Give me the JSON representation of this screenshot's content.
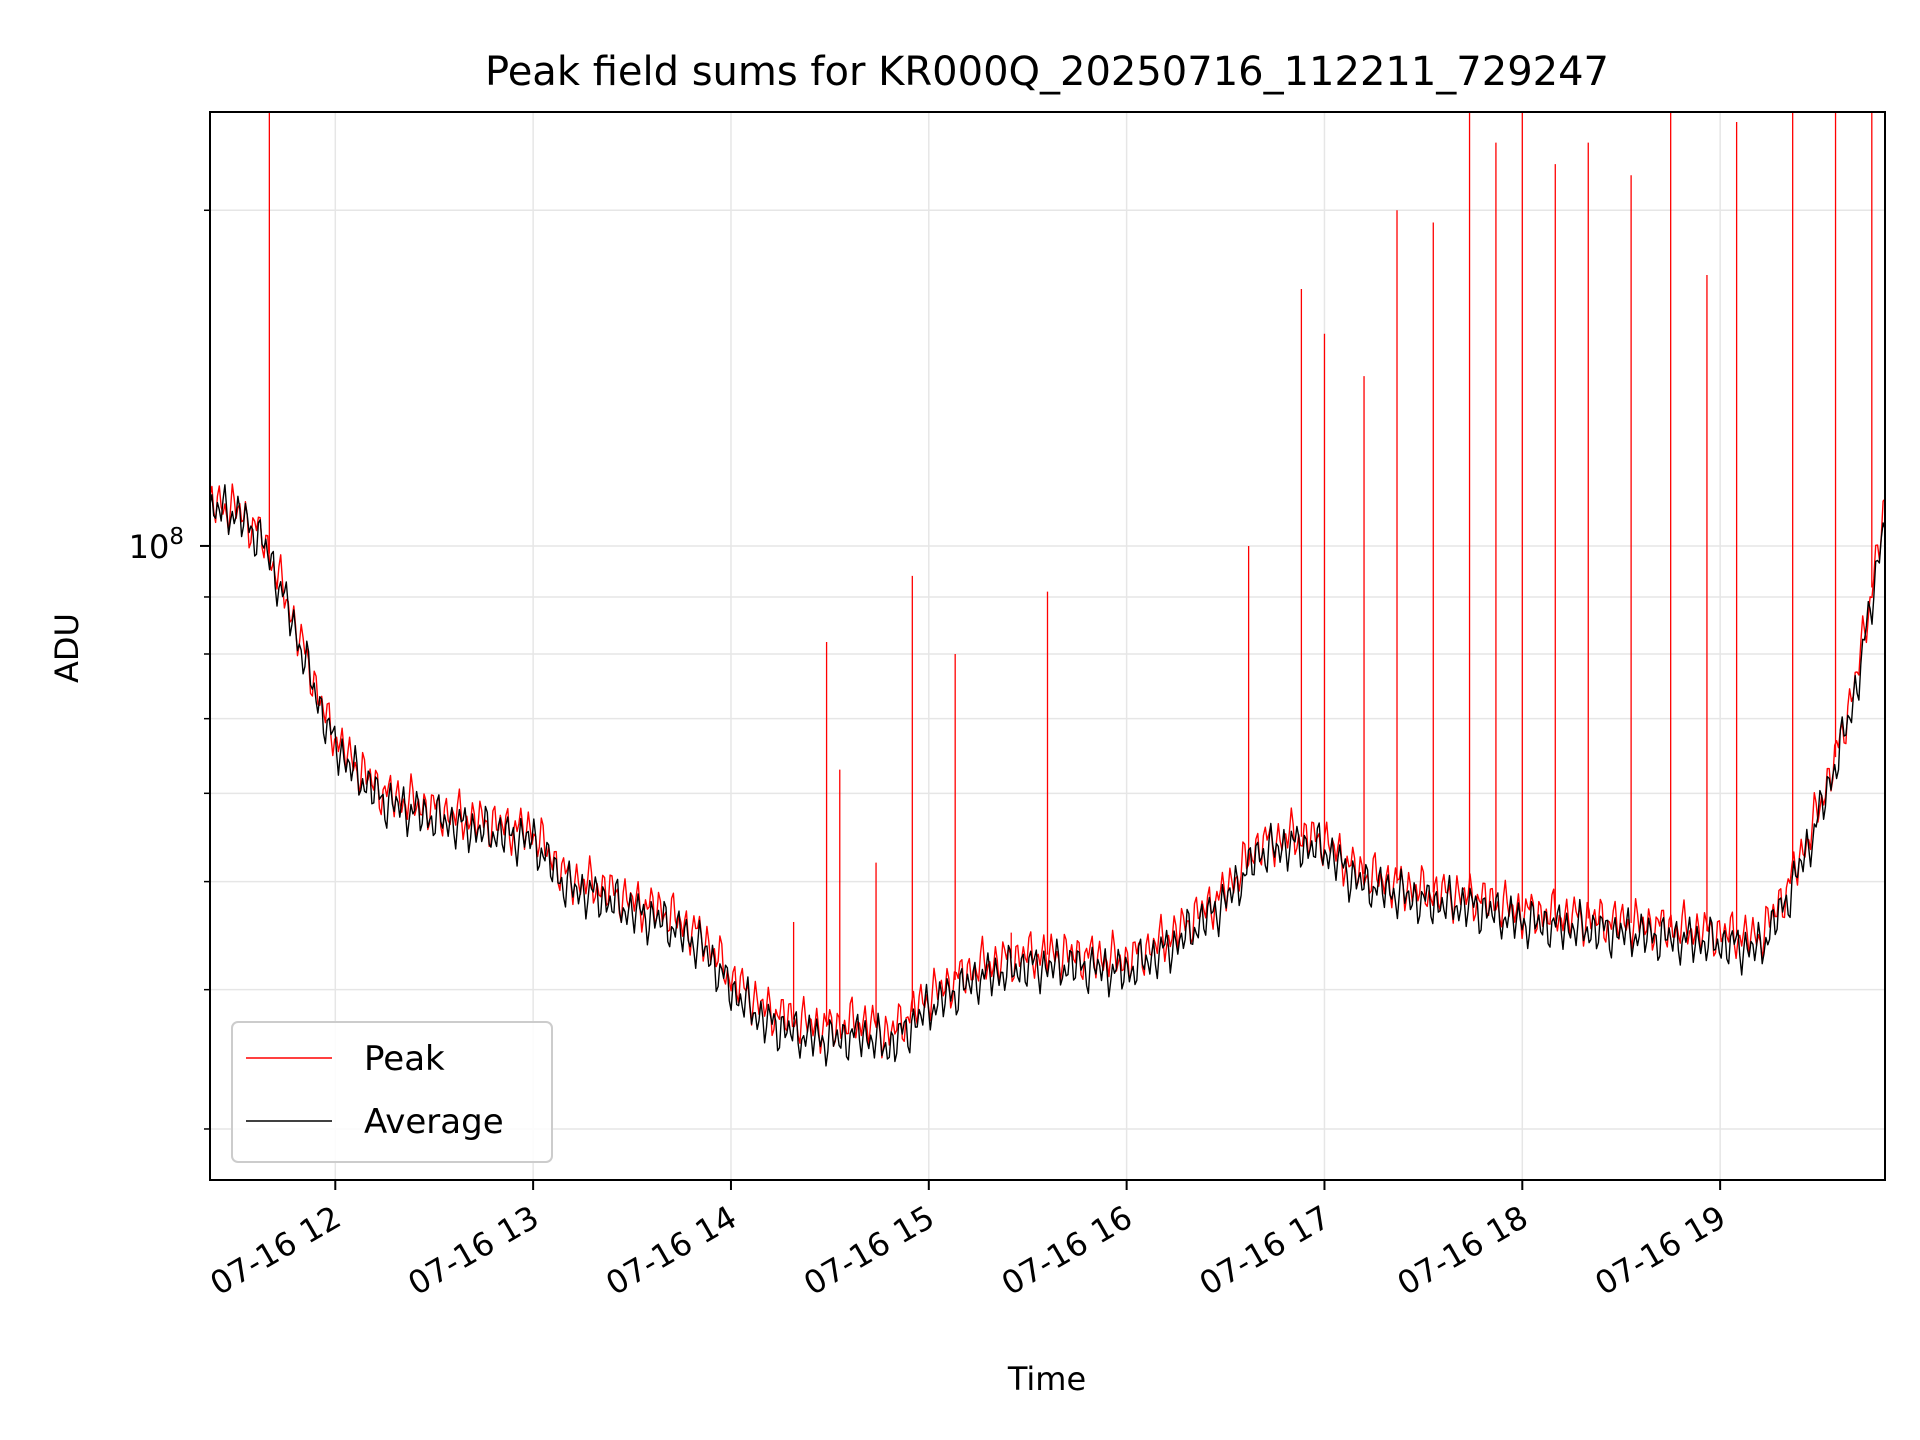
{
  "chart_data": {
    "type": "line",
    "title": "Peak field sums for KR000Q_20250716_112211_729247",
    "xlabel": "Time",
    "ylabel": "ADU",
    "x_unit": "hour",
    "x_range": [
      "07-16 11:22",
      "07-16 19:50"
    ],
    "x_ticks": [
      {
        "x": "07-16 12:00",
        "label": "07-16 12"
      },
      {
        "x": "07-16 13:00",
        "label": "07-16 13"
      },
      {
        "x": "07-16 14:00",
        "label": "07-16 14"
      },
      {
        "x": "07-16 15:00",
        "label": "07-16 15"
      },
      {
        "x": "07-16 16:00",
        "label": "07-16 16"
      },
      {
        "x": "07-16 17:00",
        "label": "07-16 17"
      },
      {
        "x": "07-16 18:00",
        "label": "07-16 18"
      },
      {
        "x": "07-16 19:00",
        "label": "07-16 19"
      }
    ],
    "y_scale": "log",
    "ylim": [
      27000000,
      245000000
    ],
    "y_major_ticks": [
      {
        "value": 100000000,
        "base": "10",
        "exp": "8"
      }
    ],
    "y_minor_ticks": [
      30000000,
      40000000,
      50000000,
      60000000,
      70000000,
      80000000,
      90000000,
      200000000
    ],
    "grid": true,
    "legend": {
      "position": "lower-left"
    },
    "series": [
      {
        "name": "Peak",
        "color": "#ff0000",
        "points": [
          [
            "07-16 11:22",
            109000000.0
          ],
          [
            "07-16 11:30",
            108000000.0
          ],
          [
            "07-16 11:38",
            102000000.0
          ],
          [
            "07-16 11:45",
            90000000.0
          ],
          [
            "07-16 11:52",
            78000000.0
          ],
          [
            "07-16 11:58",
            69000000.0
          ],
          [
            "07-16 12:05",
            64000000.0
          ],
          [
            "07-16 12:15",
            60000000.0
          ],
          [
            "07-16 12:30",
            58000000.0
          ],
          [
            "07-16 12:45",
            56500000.0
          ],
          [
            "07-16 13:00",
            55500000.0
          ],
          [
            "07-16 13:10",
            50500000.0
          ],
          [
            "07-16 13:20",
            49500000.0
          ],
          [
            "07-16 13:30",
            48000000.0
          ],
          [
            "07-16 13:40",
            47000000.0
          ],
          [
            "07-16 13:52",
            44500000.0
          ],
          [
            "07-16 14:00",
            41000000.0
          ],
          [
            "07-16 14:10",
            38500000.0
          ],
          [
            "07-16 14:20",
            37500000.0
          ],
          [
            "07-16 14:30",
            37000000.0
          ],
          [
            "07-16 14:40",
            37500000.0
          ],
          [
            "07-16 14:48",
            36500000.0
          ],
          [
            "07-16 15:00",
            39500000.0
          ],
          [
            "07-16 15:15",
            42000000.0
          ],
          [
            "07-16 15:30",
            43000000.0
          ],
          [
            "07-16 15:45",
            43000000.0
          ],
          [
            "07-16 16:00",
            42500000.0
          ],
          [
            "07-16 16:15",
            45000000.0
          ],
          [
            "07-16 16:30",
            49000000.0
          ],
          [
            "07-16 16:40",
            54000000.0
          ],
          [
            "07-16 16:50",
            55000000.0
          ],
          [
            "07-16 17:00",
            54500000.0
          ],
          [
            "07-16 17:10",
            51000000.0
          ],
          [
            "07-16 17:20",
            50000000.0
          ],
          [
            "07-16 17:30",
            49000000.0
          ],
          [
            "07-16 17:45",
            48500000.0
          ],
          [
            "07-16 18:00",
            47000000.0
          ],
          [
            "07-16 18:15",
            46500000.0
          ],
          [
            "07-16 18:30",
            46000000.0
          ],
          [
            "07-16 18:45",
            45500000.0
          ],
          [
            "07-16 19:00",
            45000000.0
          ],
          [
            "07-16 19:12",
            44500000.0
          ],
          [
            "07-16 19:20",
            49000000.0
          ],
          [
            "07-16 19:28",
            56000000.0
          ],
          [
            "07-16 19:36",
            66000000.0
          ],
          [
            "07-16 19:42",
            78000000.0
          ],
          [
            "07-16 19:50",
            108000000.0
          ]
        ],
        "spikes": [
          [
            "07-16 11:40",
            245000000.0
          ],
          [
            "07-16 14:19",
            46000000.0
          ],
          [
            "07-16 14:29",
            82000000.0
          ],
          [
            "07-16 14:33",
            63000000.0
          ],
          [
            "07-16 14:44",
            52000000.0
          ],
          [
            "07-16 14:55",
            94000000.0
          ],
          [
            "07-16 15:08",
            80000000.0
          ],
          [
            "07-16 15:25",
            45000000.0
          ],
          [
            "07-16 15:36",
            91000000.0
          ],
          [
            "07-16 16:37",
            100000000.0
          ],
          [
            "07-16 16:53",
            170000000.0
          ],
          [
            "07-16 17:00",
            155000000.0
          ],
          [
            "07-16 17:12",
            142000000.0
          ],
          [
            "07-16 17:22",
            200000000.0
          ],
          [
            "07-16 17:33",
            195000000.0
          ],
          [
            "07-16 17:44",
            245000000.0
          ],
          [
            "07-16 17:52",
            230000000.0
          ],
          [
            "07-16 18:00",
            245000000.0
          ],
          [
            "07-16 18:10",
            220000000.0
          ],
          [
            "07-16 18:20",
            230000000.0
          ],
          [
            "07-16 18:33",
            215000000.0
          ],
          [
            "07-16 18:45",
            245000000.0
          ],
          [
            "07-16 18:56",
            175000000.0
          ],
          [
            "07-16 19:05",
            240000000.0
          ],
          [
            "07-16 19:22",
            245000000.0
          ],
          [
            "07-16 19:35",
            245000000.0
          ],
          [
            "07-16 19:46",
            245000000.0
          ]
        ]
      },
      {
        "name": "Average",
        "color": "#000000",
        "points": [
          [
            "07-16 11:22",
            108000000.0
          ],
          [
            "07-16 11:30",
            107000000.0
          ],
          [
            "07-16 11:38",
            101000000.0
          ],
          [
            "07-16 11:45",
            89000000.0
          ],
          [
            "07-16 11:52",
            77000000.0
          ],
          [
            "07-16 11:58",
            68000000.0
          ],
          [
            "07-16 12:05",
            63000000.0
          ],
          [
            "07-16 12:15",
            59000000.0
          ],
          [
            "07-16 12:30",
            57000000.0
          ],
          [
            "07-16 12:45",
            55500000.0
          ],
          [
            "07-16 13:00",
            54500000.0
          ],
          [
            "07-16 13:10",
            49500000.0
          ],
          [
            "07-16 13:20",
            48500000.0
          ],
          [
            "07-16 13:30",
            47000000.0
          ],
          [
            "07-16 13:40",
            46000000.0
          ],
          [
            "07-16 13:52",
            43500000.0
          ],
          [
            "07-16 14:00",
            40000000.0
          ],
          [
            "07-16 14:10",
            37500000.0
          ],
          [
            "07-16 14:20",
            36500000.0
          ],
          [
            "07-16 14:30",
            36000000.0
          ],
          [
            "07-16 14:40",
            36500000.0
          ],
          [
            "07-16 14:48",
            35500000.0
          ],
          [
            "07-16 15:00",
            38500000.0
          ],
          [
            "07-16 15:15",
            41000000.0
          ],
          [
            "07-16 15:30",
            42000000.0
          ],
          [
            "07-16 15:45",
            42000000.0
          ],
          [
            "07-16 16:00",
            41500000.0
          ],
          [
            "07-16 16:15",
            44000000.0
          ],
          [
            "07-16 16:30",
            48000000.0
          ],
          [
            "07-16 16:40",
            53000000.0
          ],
          [
            "07-16 16:50",
            54000000.0
          ],
          [
            "07-16 17:00",
            53500000.0
          ],
          [
            "07-16 17:10",
            50000000.0
          ],
          [
            "07-16 17:20",
            49000000.0
          ],
          [
            "07-16 17:30",
            48000000.0
          ],
          [
            "07-16 17:45",
            47500000.0
          ],
          [
            "07-16 18:00",
            46000000.0
          ],
          [
            "07-16 18:15",
            45500000.0
          ],
          [
            "07-16 18:30",
            45000000.0
          ],
          [
            "07-16 18:45",
            44500000.0
          ],
          [
            "07-16 19:00",
            44000000.0
          ],
          [
            "07-16 19:12",
            43500000.0
          ],
          [
            "07-16 19:20",
            48000000.0
          ],
          [
            "07-16 19:28",
            55000000.0
          ],
          [
            "07-16 19:36",
            65000000.0
          ],
          [
            "07-16 19:42",
            76000000.0
          ],
          [
            "07-16 19:50",
            106000000.0
          ]
        ]
      }
    ]
  }
}
